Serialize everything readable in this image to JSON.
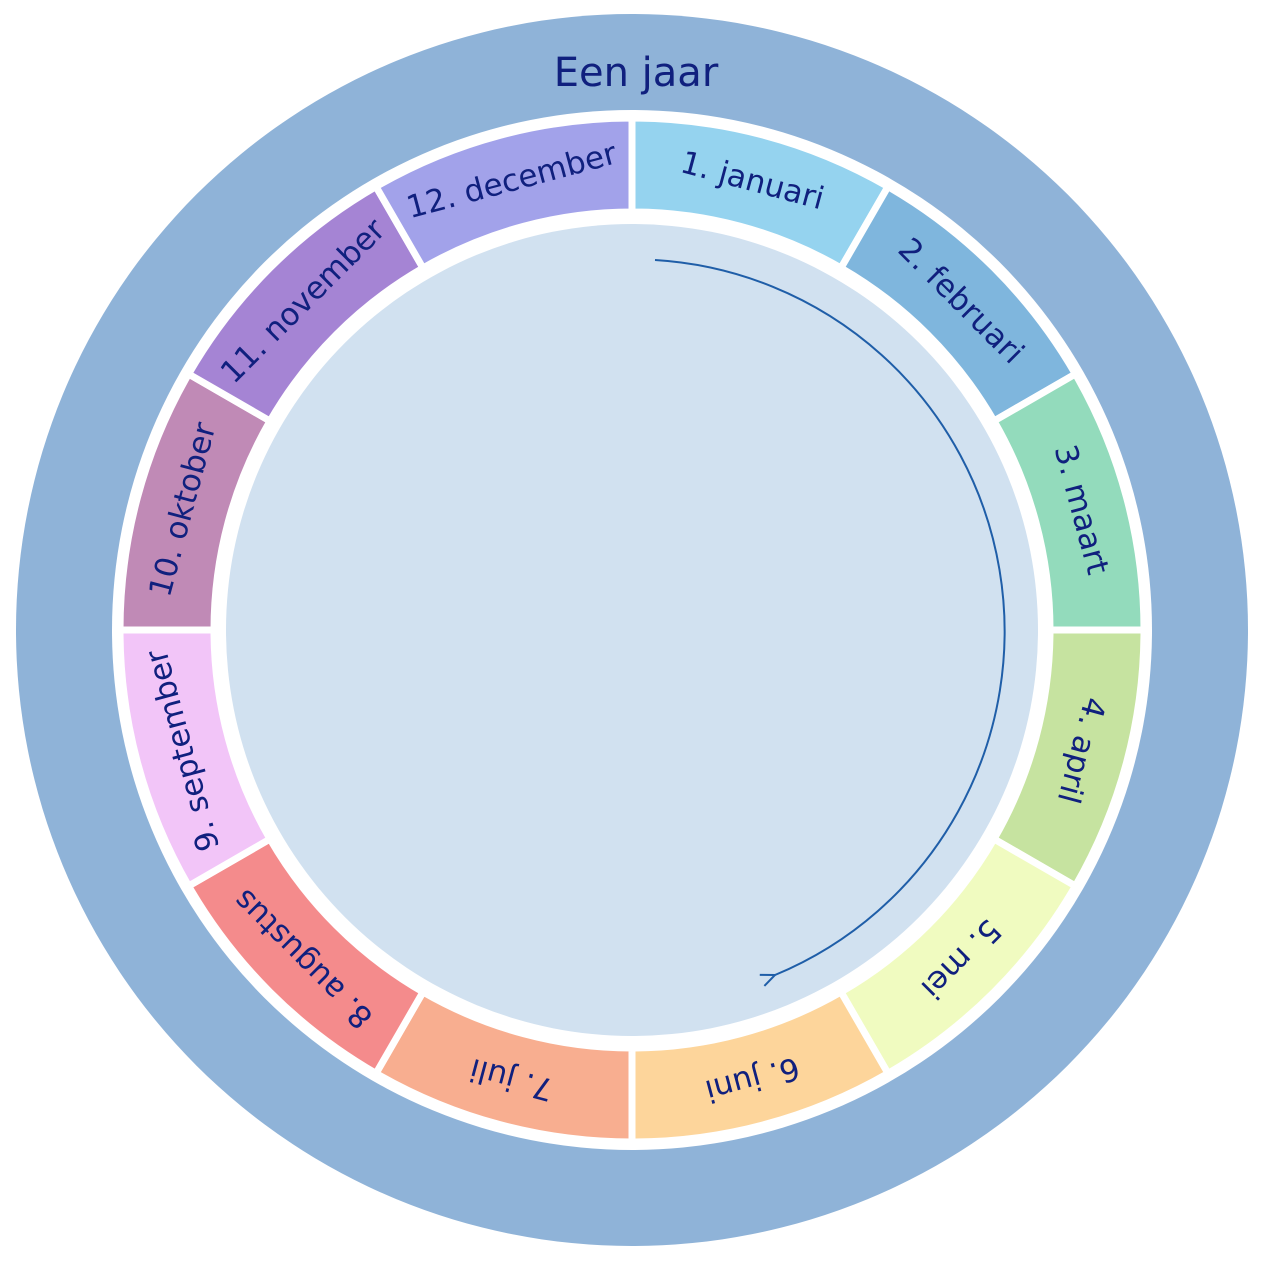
{
  "title": "Een jaar",
  "segments": [
    {
      "label": "1.  januari",
      "color": "#95d3ef"
    },
    {
      "label": "2.  februari",
      "color": "#7fb6dd"
    },
    {
      "label": "3.  maart",
      "color": "#93dbbc"
    },
    {
      "label": "4.  april",
      "color": "#c6e3a0"
    },
    {
      "label": "5. mei",
      "color": "#f0fbc0"
    },
    {
      "label": "6.  juni",
      "color": "#fdd59b"
    },
    {
      "label": "7.  juli",
      "color": "#f8ae90"
    },
    {
      "label": "8.  augustus",
      "color": "#f48b8c"
    },
    {
      "label": "9.  september",
      "color": "#f2c5f8"
    },
    {
      "label": "10.  oktober",
      "color": "#c08ab6"
    },
    {
      "label": "11. november",
      "color": "#a584d4"
    },
    {
      "label": "12. december",
      "color": "#a2a2ea"
    }
  ]
}
